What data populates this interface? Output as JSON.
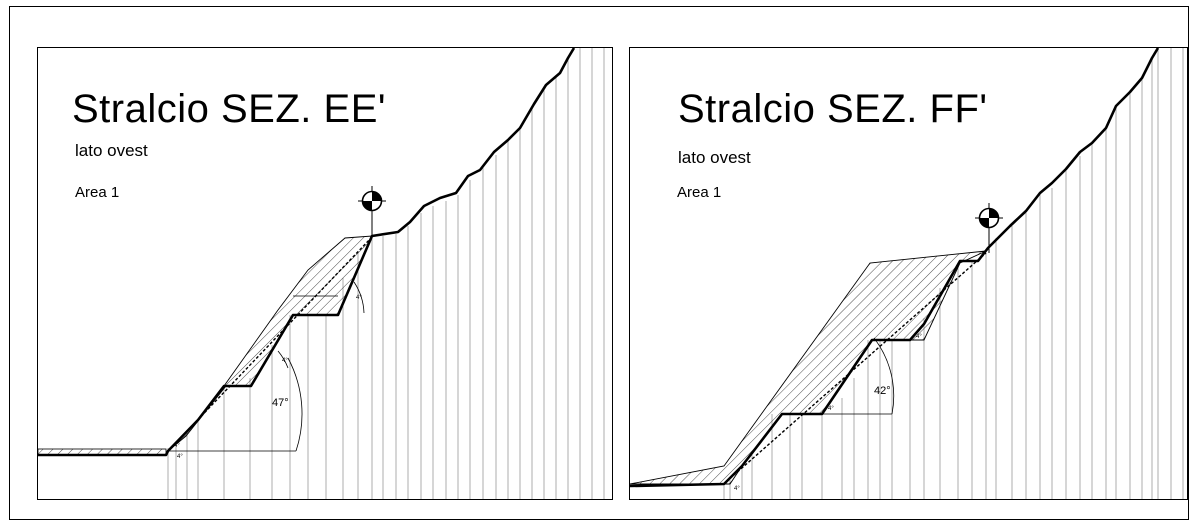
{
  "sections": [
    {
      "title": "Stralcio SEZ. EE'",
      "subtitle": "lato ovest",
      "area_label": "Area 1",
      "angle_label": "47°"
    },
    {
      "title": "Stralcio SEZ. FF'",
      "subtitle": "lato ovest",
      "area_label": "Area 1",
      "angle_label": "42°"
    }
  ]
}
